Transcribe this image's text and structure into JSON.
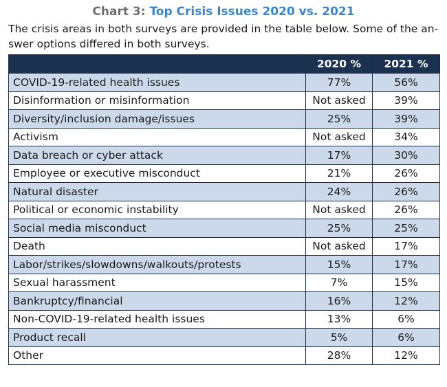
{
  "title": {
    "prefix": "Chart 3:",
    "main": "Top Crisis Issues 2020 vs. 2021"
  },
  "intro_lines": [
    "The crisis areas in both surveys are provided in the table below. Some of the an-",
    "swer options differed in both surveys."
  ],
  "chart_data": {
    "type": "table",
    "columns": [
      "",
      "2020 %",
      "2021 %"
    ],
    "rows": [
      {
        "category": "COVID-19-related health issues",
        "y2020": "77%",
        "y2021": "56%"
      },
      {
        "category": "Disinformation or misinformation",
        "y2020": "Not asked",
        "y2021": "39%"
      },
      {
        "category": "Diversity/inclusion damage/issues",
        "y2020": "25%",
        "y2021": "39%"
      },
      {
        "category": "Activism",
        "y2020": "Not asked",
        "y2021": "34%"
      },
      {
        "category": "Data breach or cyber attack",
        "y2020": "17%",
        "y2021": "30%"
      },
      {
        "category": "Employee or executive misconduct",
        "y2020": "21%",
        "y2021": "26%"
      },
      {
        "category": "Natural disaster",
        "y2020": "24%",
        "y2021": "26%"
      },
      {
        "category": "Political or economic instability",
        "y2020": "Not asked",
        "y2021": "26%"
      },
      {
        "category": "Social media misconduct",
        "y2020": "25%",
        "y2021": "25%"
      },
      {
        "category": "Death",
        "y2020": "Not asked",
        "y2021": "17%"
      },
      {
        "category": "Labor/strikes/slowdowns/walkouts/protests",
        "y2020": "15%",
        "y2021": "17%"
      },
      {
        "category": "Sexual harassment",
        "y2020": "7%",
        "y2021": "15%"
      },
      {
        "category": "Bankruptcy/financial",
        "y2020": "16%",
        "y2021": "12%"
      },
      {
        "category": "Non-COVID-19-related health issues",
        "y2020": "13%",
        "y2021": "6%"
      },
      {
        "category": "Product recall",
        "y2020": "5%",
        "y2021": "6%"
      },
      {
        "category": "Other",
        "y2020": "28%",
        "y2021": "12%"
      }
    ]
  },
  "colors": {
    "header_bg": "#1b3150",
    "row_alt": "#ccd9ea",
    "title_accent": "#3a86c8",
    "title_prefix": "#6d6e71"
  }
}
